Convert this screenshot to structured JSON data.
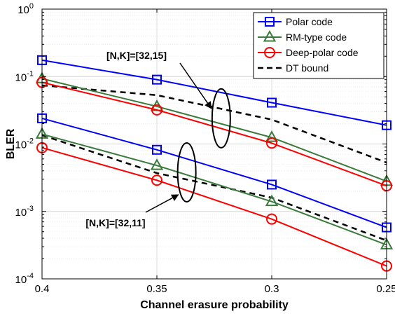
{
  "chart_data": {
    "type": "line",
    "xlabel": "Channel erasure probability",
    "ylabel": "BLER",
    "x": [
      0.4,
      0.35,
      0.3,
      0.25
    ],
    "xlim": [
      0.4,
      0.25
    ],
    "x_reversed": true,
    "x_tick_labels": [
      "0.4",
      "0.35",
      "0.3",
      "0.25"
    ],
    "ylim": [
      0.0001,
      1
    ],
    "yscale": "log",
    "y_tick_labels": [
      {
        "base": "10",
        "exp": "-4"
      },
      {
        "base": "10",
        "exp": "-3"
      },
      {
        "base": "10",
        "exp": "-2"
      },
      {
        "base": "10",
        "exp": "-1"
      },
      {
        "base": "10",
        "exp": "0"
      }
    ],
    "grid": true,
    "legend_position": "top-right",
    "legend": [
      {
        "label": "Polar code",
        "color": "#0000ff",
        "marker": "square",
        "dash": false
      },
      {
        "label": "RM-type code",
        "color": "#3a7a3a",
        "marker": "triangle",
        "dash": false
      },
      {
        "label": "Deep-polar code",
        "color": "#ff0000",
        "marker": "circle",
        "dash": false
      },
      {
        "label": "DT bound",
        "color": "#000000",
        "marker": "none",
        "dash": true
      }
    ],
    "groups": [
      {
        "label": "[N,K]=[32,15]",
        "series": [
          {
            "legend": "Polar code",
            "values": [
              0.175,
              0.09,
              0.041,
              0.019
            ]
          },
          {
            "legend": "RM-type code",
            "values": [
              0.093,
              0.036,
              0.0125,
              0.0028
            ]
          },
          {
            "legend": "Deep-polar code",
            "values": [
              0.082,
              0.032,
              0.0103,
              0.0024
            ]
          },
          {
            "legend": "DT bound",
            "values": [
              0.074,
              0.053,
              0.023,
              0.0053
            ]
          }
        ]
      },
      {
        "label": "[N,K]=[32,11]",
        "series": [
          {
            "legend": "Polar code",
            "values": [
              0.024,
              0.0082,
              0.0025,
              0.00058
            ]
          },
          {
            "legend": "RM-type code",
            "values": [
              0.014,
              0.0048,
              0.0014,
              0.00032
            ]
          },
          {
            "legend": "Deep-polar code",
            "values": [
              0.0088,
              0.0029,
              0.00077,
              0.000155
            ]
          },
          {
            "legend": "DT bound",
            "values": [
              0.0135,
              0.0037,
              0.0016,
              0.00037
            ]
          }
        ]
      }
    ]
  }
}
